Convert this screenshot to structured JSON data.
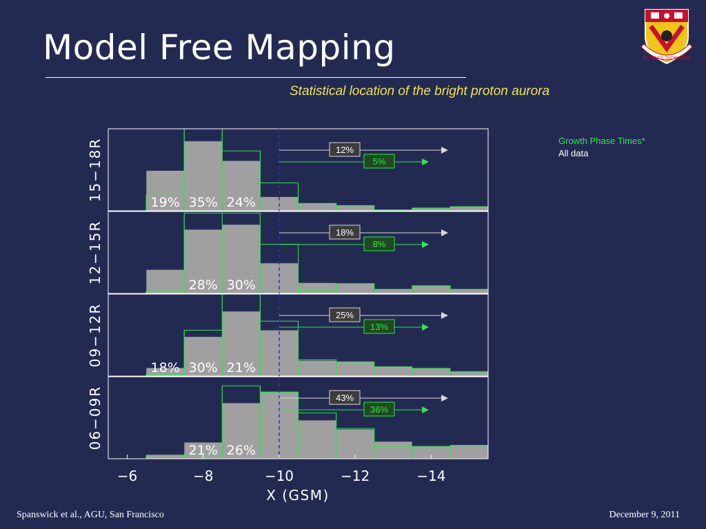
{
  "slide": {
    "title": "Model Free Mapping",
    "subtitle": "Statistical location of the bright proton aurora",
    "footer_left": "Spanswick et al., AGU, San Francisco",
    "footer_right": "December 9, 2011",
    "logo_motto": "NC SIGILS TOCAM SIAS"
  },
  "legend": {
    "growth_label": "Growth Phase Times*",
    "all_label": "All data",
    "growth_color": "#2ee64a",
    "all_color": "#a0a0a0"
  },
  "chart_data": {
    "type": "bar",
    "xlabel": "X (GSM)",
    "x_ticks": [
      "−6",
      "−8",
      "−10",
      "−12",
      "−14"
    ],
    "x_tick_values": [
      -6,
      -8,
      -10,
      -12,
      -14
    ],
    "xlim": [
      -5.5,
      -15.5
    ],
    "bin_edges": [
      -5.5,
      -6.5,
      -7.5,
      -8.5,
      -9.5,
      -10.5,
      -11.5,
      -12.5,
      -13.5,
      -14.5,
      -15.5
    ],
    "threshold_x": -10,
    "colors": {
      "all_data": "#a0a0a0",
      "growth_phase": "#2ee64a",
      "threshold": "#2a2ae0"
    },
    "panels": [
      {
        "label": "15−18R",
        "ylim": [
          0,
          1
        ],
        "all_data": [
          0,
          0.49,
          0.85,
          0.61,
          0.17,
          0.09,
          0.07,
          0.01,
          0.04,
          0.05
        ],
        "growth_phase": [
          0,
          0.19,
          1.0,
          0.73,
          0.34,
          0.09,
          0.06,
          0.01,
          0.03,
          0.05
        ],
        "percent_labels": [
          "19%",
          "35%",
          "24%"
        ],
        "all_right": "12%",
        "growth_right": "5%"
      },
      {
        "label": "12−15R",
        "ylim": [
          0,
          1
        ],
        "all_data": [
          0,
          0.29,
          0.78,
          0.84,
          0.37,
          0.13,
          0.12,
          0.05,
          0.1,
          0.05
        ],
        "growth_phase": [
          0,
          0.03,
          0.98,
          0.98,
          0.6,
          0.04,
          0.12,
          0.05,
          0.09,
          0.05
        ],
        "percent_labels": [
          "28%",
          "30%"
        ],
        "all_right": "18%",
        "growth_right": "8%"
      },
      {
        "label": "09−12R",
        "ylim": [
          0,
          1
        ],
        "all_data": [
          0,
          0.1,
          0.48,
          0.79,
          0.56,
          0.19,
          0.18,
          0.12,
          0.1,
          0.06
        ],
        "growth_phase": [
          0,
          0.02,
          0.56,
          1.0,
          0.67,
          0.2,
          0.17,
          0.11,
          0.09,
          0.05
        ],
        "percent_labels": [
          "18%",
          "30%",
          "21%"
        ],
        "all_right": "25%",
        "growth_right": "13%"
      },
      {
        "label": "06−09R",
        "ylim": [
          0,
          1
        ],
        "all_data": [
          0,
          0.05,
          0.2,
          0.68,
          0.82,
          0.47,
          0.36,
          0.21,
          0.15,
          0.17
        ],
        "growth_phase": [
          0,
          0.04,
          0.06,
          0.89,
          0.81,
          0.56,
          0.37,
          0.15,
          0.15,
          0.16
        ],
        "percent_labels": [
          "21%",
          "26%"
        ],
        "all_right": "43%",
        "growth_right": "36%"
      }
    ]
  }
}
